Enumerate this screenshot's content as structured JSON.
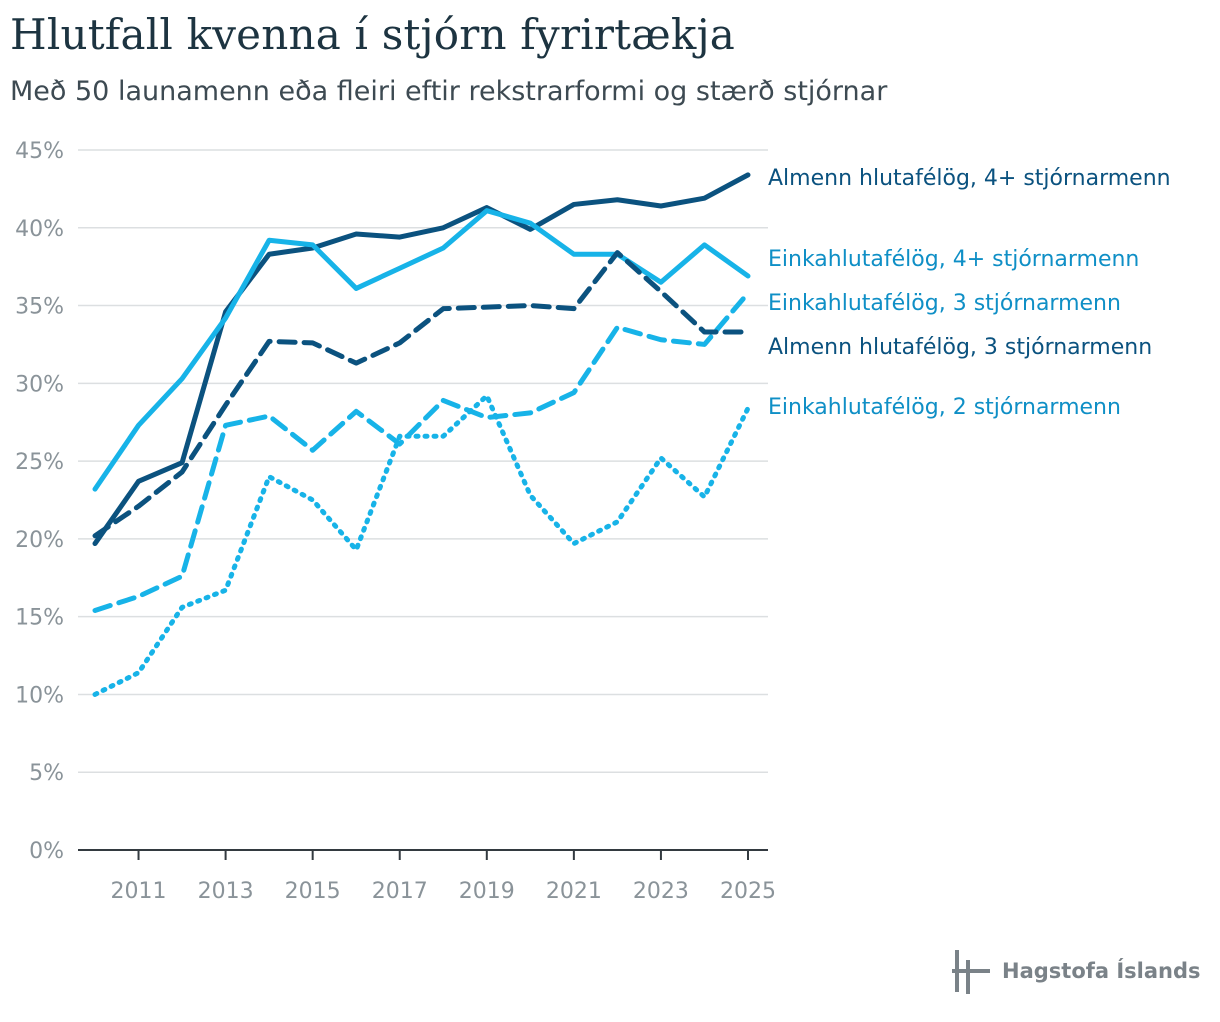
{
  "header": {
    "title": "Hlutfall kvenna í stjórn fyrirtækja",
    "subtitle": "Með 50 launamenn eða fleiri eftir rekstrarformi og stærð stjórnar"
  },
  "branding": {
    "logo_text": "Hagstofa Íslands"
  },
  "chart_data": {
    "type": "line",
    "title": "Hlutfall kvenna í stjórn fyrirtækja",
    "subtitle": "Með 50 launamenn eða fleiri eftir rekstrarformi og stærð stjórnar",
    "xlabel": "",
    "ylabel": "",
    "x": [
      2010,
      2011,
      2012,
      2013,
      2014,
      2015,
      2016,
      2017,
      2018,
      2019,
      2020,
      2021,
      2022,
      2023,
      2024,
      2025
    ],
    "x_tick_labels": [
      "2011",
      "2013",
      "2015",
      "2017",
      "2019",
      "2021",
      "2023",
      "2025"
    ],
    "x_tick_values": [
      2011,
      2013,
      2015,
      2017,
      2019,
      2021,
      2023,
      2025
    ],
    "y_ticks": [
      0,
      5,
      10,
      15,
      20,
      25,
      30,
      35,
      40,
      45
    ],
    "y_tick_labels": [
      "0%",
      "5%",
      "10%",
      "15%",
      "20%",
      "25%",
      "30%",
      "35%",
      "40%",
      "45%"
    ],
    "ylim": [
      0,
      45
    ],
    "grid": true,
    "legend": "direct labels at right",
    "series": [
      {
        "name": "Almenn hlutafélög, 4+ stjórnarmenn",
        "color": "#0b527f",
        "dash": "solid",
        "values": [
          19.7,
          23.7,
          24.9,
          34.6,
          38.3,
          38.7,
          39.6,
          39.4,
          40.0,
          41.3,
          39.9,
          41.5,
          41.8,
          41.4,
          41.9,
          43.4
        ]
      },
      {
        "name": "Einkahlutafélög, 4+ stjórnarmenn",
        "color": "#17b3e8",
        "dash": "solid",
        "values": [
          23.2,
          27.3,
          30.3,
          34.2,
          39.2,
          38.9,
          36.1,
          37.4,
          38.7,
          41.1,
          40.3,
          38.3,
          38.3,
          36.5,
          38.9,
          36.9
        ]
      },
      {
        "name": "Einkahlutafélög, 3 stjórnarmenn",
        "color": "#17b3e8",
        "dash": "dashed",
        "values": [
          15.4,
          16.3,
          17.6,
          27.3,
          27.9,
          25.7,
          28.2,
          26.1,
          28.9,
          27.8,
          28.1,
          29.4,
          33.6,
          32.8,
          32.5,
          35.8
        ]
      },
      {
        "name": "Almenn hlutafélög, 3 stjórnarmenn",
        "color": "#0b527f",
        "dash": "dashed",
        "values": [
          20.2,
          22.1,
          24.3,
          28.6,
          32.7,
          32.6,
          31.3,
          32.6,
          34.8,
          34.9,
          35.0,
          34.8,
          38.4,
          35.9,
          33.3,
          33.3
        ]
      },
      {
        "name": "Einkahlutafélög, 2 stjórnarmenn",
        "color": "#17b3e8",
        "dash": "dotted",
        "values": [
          10.0,
          11.4,
          15.6,
          16.7,
          24.0,
          22.5,
          19.3,
          26.6,
          26.6,
          29.2,
          22.8,
          19.7,
          21.1,
          25.2,
          22.7,
          28.4
        ]
      }
    ],
    "series_label_colors": [
      "#0b527f",
      "#0f8fc6",
      "#0f8fc6",
      "#0b527f",
      "#0f8fc6"
    ]
  }
}
